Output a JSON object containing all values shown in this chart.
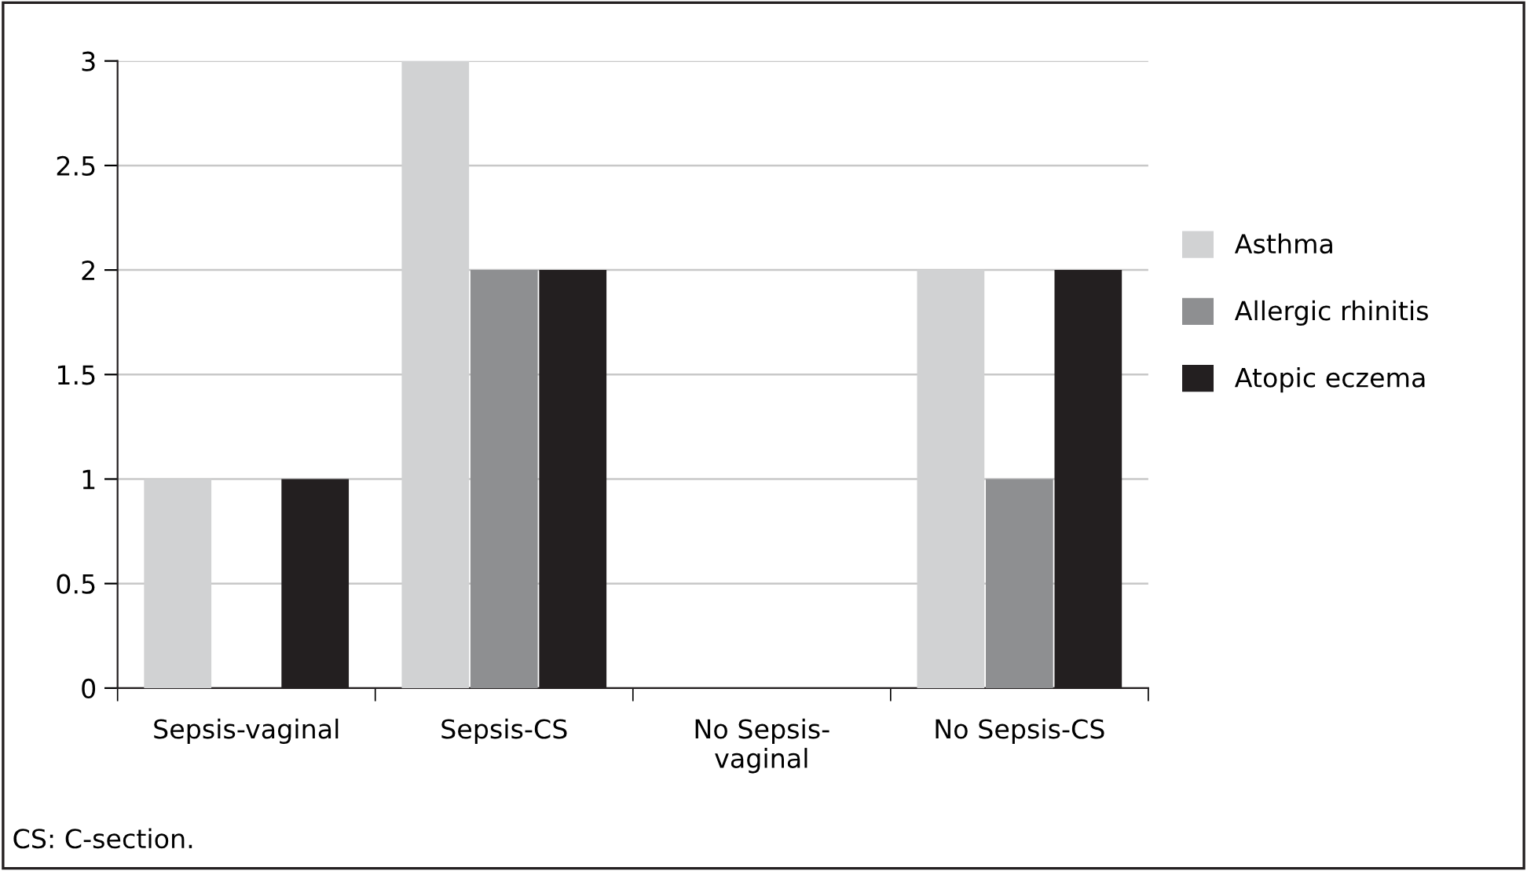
{
  "chart_data": {
    "type": "bar",
    "categories": [
      "Sepsis-vaginal",
      "Sepsis-CS",
      "No Sepsis-\nvaginal",
      "No Sepsis-CS"
    ],
    "series": [
      {
        "name": "Asthma",
        "color": "#d1d2d3",
        "values": [
          1,
          3,
          0,
          2
        ]
      },
      {
        "name": "Allergic rhinitis",
        "color": "#8e8f91",
        "values": [
          0,
          2,
          0,
          1
        ]
      },
      {
        "name": "Atopic eczema",
        "color": "#231f20",
        "values": [
          1,
          2,
          0,
          2
        ]
      }
    ],
    "ylim": [
      0,
      3
    ],
    "yticks": [
      0,
      0.5,
      1,
      1.5,
      2,
      2.5,
      3
    ],
    "grid": "y",
    "legend": "right",
    "annotations": [
      "CS: C-section."
    ]
  }
}
